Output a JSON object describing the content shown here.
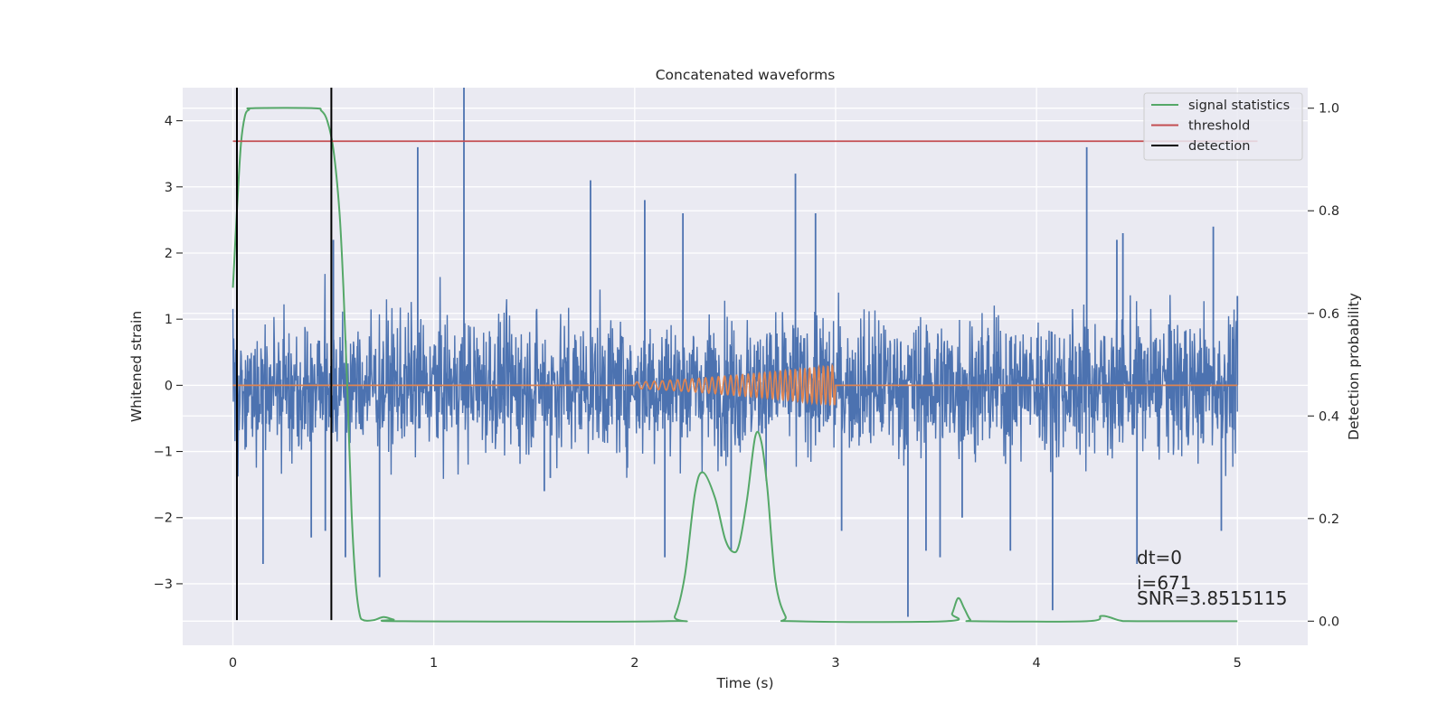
{
  "chart_data": {
    "type": "line",
    "title": "Concatenated waveforms",
    "xlabel": "Time (s)",
    "ylabel_left": "Whitened strain",
    "ylabel_right": "Detection probability",
    "xlim": [
      -0.25,
      5.35
    ],
    "ylim_left": [
      -3.93,
      4.5
    ],
    "ylim_right": [
      -0.047,
      1.04
    ],
    "x_ticks": [
      0,
      1,
      2,
      3,
      4,
      5
    ],
    "y_left_ticks": [
      -3,
      -2,
      -1,
      0,
      1,
      2,
      3,
      4
    ],
    "y_right_ticks": [
      0.0,
      0.2,
      0.4,
      0.6,
      0.8,
      1.0
    ],
    "grid": true,
    "legend_position": "top-right",
    "legend": [
      {
        "label": "signal statistics",
        "color": "#55a868"
      },
      {
        "label": "threshold",
        "color": "#c44e52"
      },
      {
        "label": "detection",
        "color": "#000000"
      }
    ],
    "series": [
      {
        "name": "",
        "axis": "left",
        "color": "#4c72b0",
        "kind": "noise",
        "x_range": [
          0,
          5
        ],
        "peaks": [
          [
            0.02,
            1.5
          ],
          [
            0.15,
            -2.7
          ],
          [
            0.39,
            -2.3
          ],
          [
            0.46,
            -2.2
          ],
          [
            0.5,
            2.2
          ],
          [
            0.56,
            -2.6
          ],
          [
            0.73,
            -2.9
          ],
          [
            0.92,
            3.6
          ],
          [
            1.15,
            4.5
          ],
          [
            1.55,
            -1.6
          ],
          [
            1.58,
            -1.4
          ],
          [
            1.78,
            3.1
          ],
          [
            2.05,
            2.8
          ],
          [
            2.15,
            -2.6
          ],
          [
            2.24,
            2.6
          ],
          [
            2.48,
            -2.5
          ],
          [
            2.8,
            3.2
          ],
          [
            2.9,
            2.6
          ],
          [
            3.03,
            -2.2
          ],
          [
            3.36,
            -3.5
          ],
          [
            3.45,
            -2.5
          ],
          [
            3.52,
            -2.6
          ],
          [
            3.63,
            -2.0
          ],
          [
            3.87,
            -2.5
          ],
          [
            4.08,
            -3.4
          ],
          [
            4.25,
            3.6
          ],
          [
            4.4,
            2.2
          ],
          [
            4.43,
            2.3
          ],
          [
            4.5,
            -2.7
          ],
          [
            4.88,
            2.4
          ],
          [
            4.92,
            -2.2
          ],
          [
            5.0,
            1.35
          ]
        ]
      },
      {
        "name": "",
        "axis": "left",
        "color": "#dd8452",
        "kind": "chirp",
        "x_range": [
          0,
          5
        ],
        "chirp_start": 2.0,
        "chirp_end": 3.0,
        "amp_start": 0.05,
        "amp_end": 0.3
      },
      {
        "name": "signal statistics",
        "axis": "right",
        "color": "#55a868",
        "points": [
          [
            0.0,
            0.65
          ],
          [
            0.02,
            0.8
          ],
          [
            0.04,
            0.93
          ],
          [
            0.06,
            0.985
          ],
          [
            0.08,
            0.997
          ],
          [
            0.1,
            1.0
          ],
          [
            0.4,
            1.0
          ],
          [
            0.44,
            0.995
          ],
          [
            0.47,
            0.975
          ],
          [
            0.5,
            0.92
          ],
          [
            0.53,
            0.8
          ],
          [
            0.55,
            0.65
          ],
          [
            0.57,
            0.45
          ],
          [
            0.59,
            0.22
          ],
          [
            0.61,
            0.08
          ],
          [
            0.63,
            0.015
          ],
          [
            0.65,
            0.002
          ],
          [
            0.7,
            0.002
          ],
          [
            0.75,
            0.008
          ],
          [
            0.8,
            0.003
          ],
          [
            0.85,
            0.0
          ],
          [
            2.15,
            0.0
          ],
          [
            2.2,
            0.01
          ],
          [
            2.25,
            0.09
          ],
          [
            2.3,
            0.25
          ],
          [
            2.34,
            0.29
          ],
          [
            2.4,
            0.24
          ],
          [
            2.45,
            0.16
          ],
          [
            2.49,
            0.135
          ],
          [
            2.52,
            0.15
          ],
          [
            2.56,
            0.24
          ],
          [
            2.6,
            0.36
          ],
          [
            2.63,
            0.35
          ],
          [
            2.66,
            0.26
          ],
          [
            2.7,
            0.08
          ],
          [
            2.75,
            0.01
          ],
          [
            2.8,
            0.0
          ],
          [
            3.55,
            0.0
          ],
          [
            3.58,
            0.015
          ],
          [
            3.61,
            0.045
          ],
          [
            3.64,
            0.025
          ],
          [
            3.67,
            0.003
          ],
          [
            3.7,
            0.0
          ],
          [
            4.25,
            0.0
          ],
          [
            4.32,
            0.01
          ],
          [
            4.36,
            0.008
          ],
          [
            4.42,
            0.001
          ],
          [
            4.5,
            0.0
          ],
          [
            5.0,
            0.0
          ]
        ]
      },
      {
        "name": "threshold",
        "axis": "left",
        "color": "#c44e52",
        "points": [
          [
            0.0,
            3.69
          ],
          [
            5.1,
            3.69
          ]
        ]
      },
      {
        "name": "detection",
        "axis": "left",
        "color": "#000000",
        "vlines": [
          0.02,
          0.49
        ],
        "span": [
          -3.55,
          4.5
        ]
      }
    ],
    "annotations": [
      "dt=0",
      "i=671",
      "SNR=3.8515115"
    ]
  }
}
